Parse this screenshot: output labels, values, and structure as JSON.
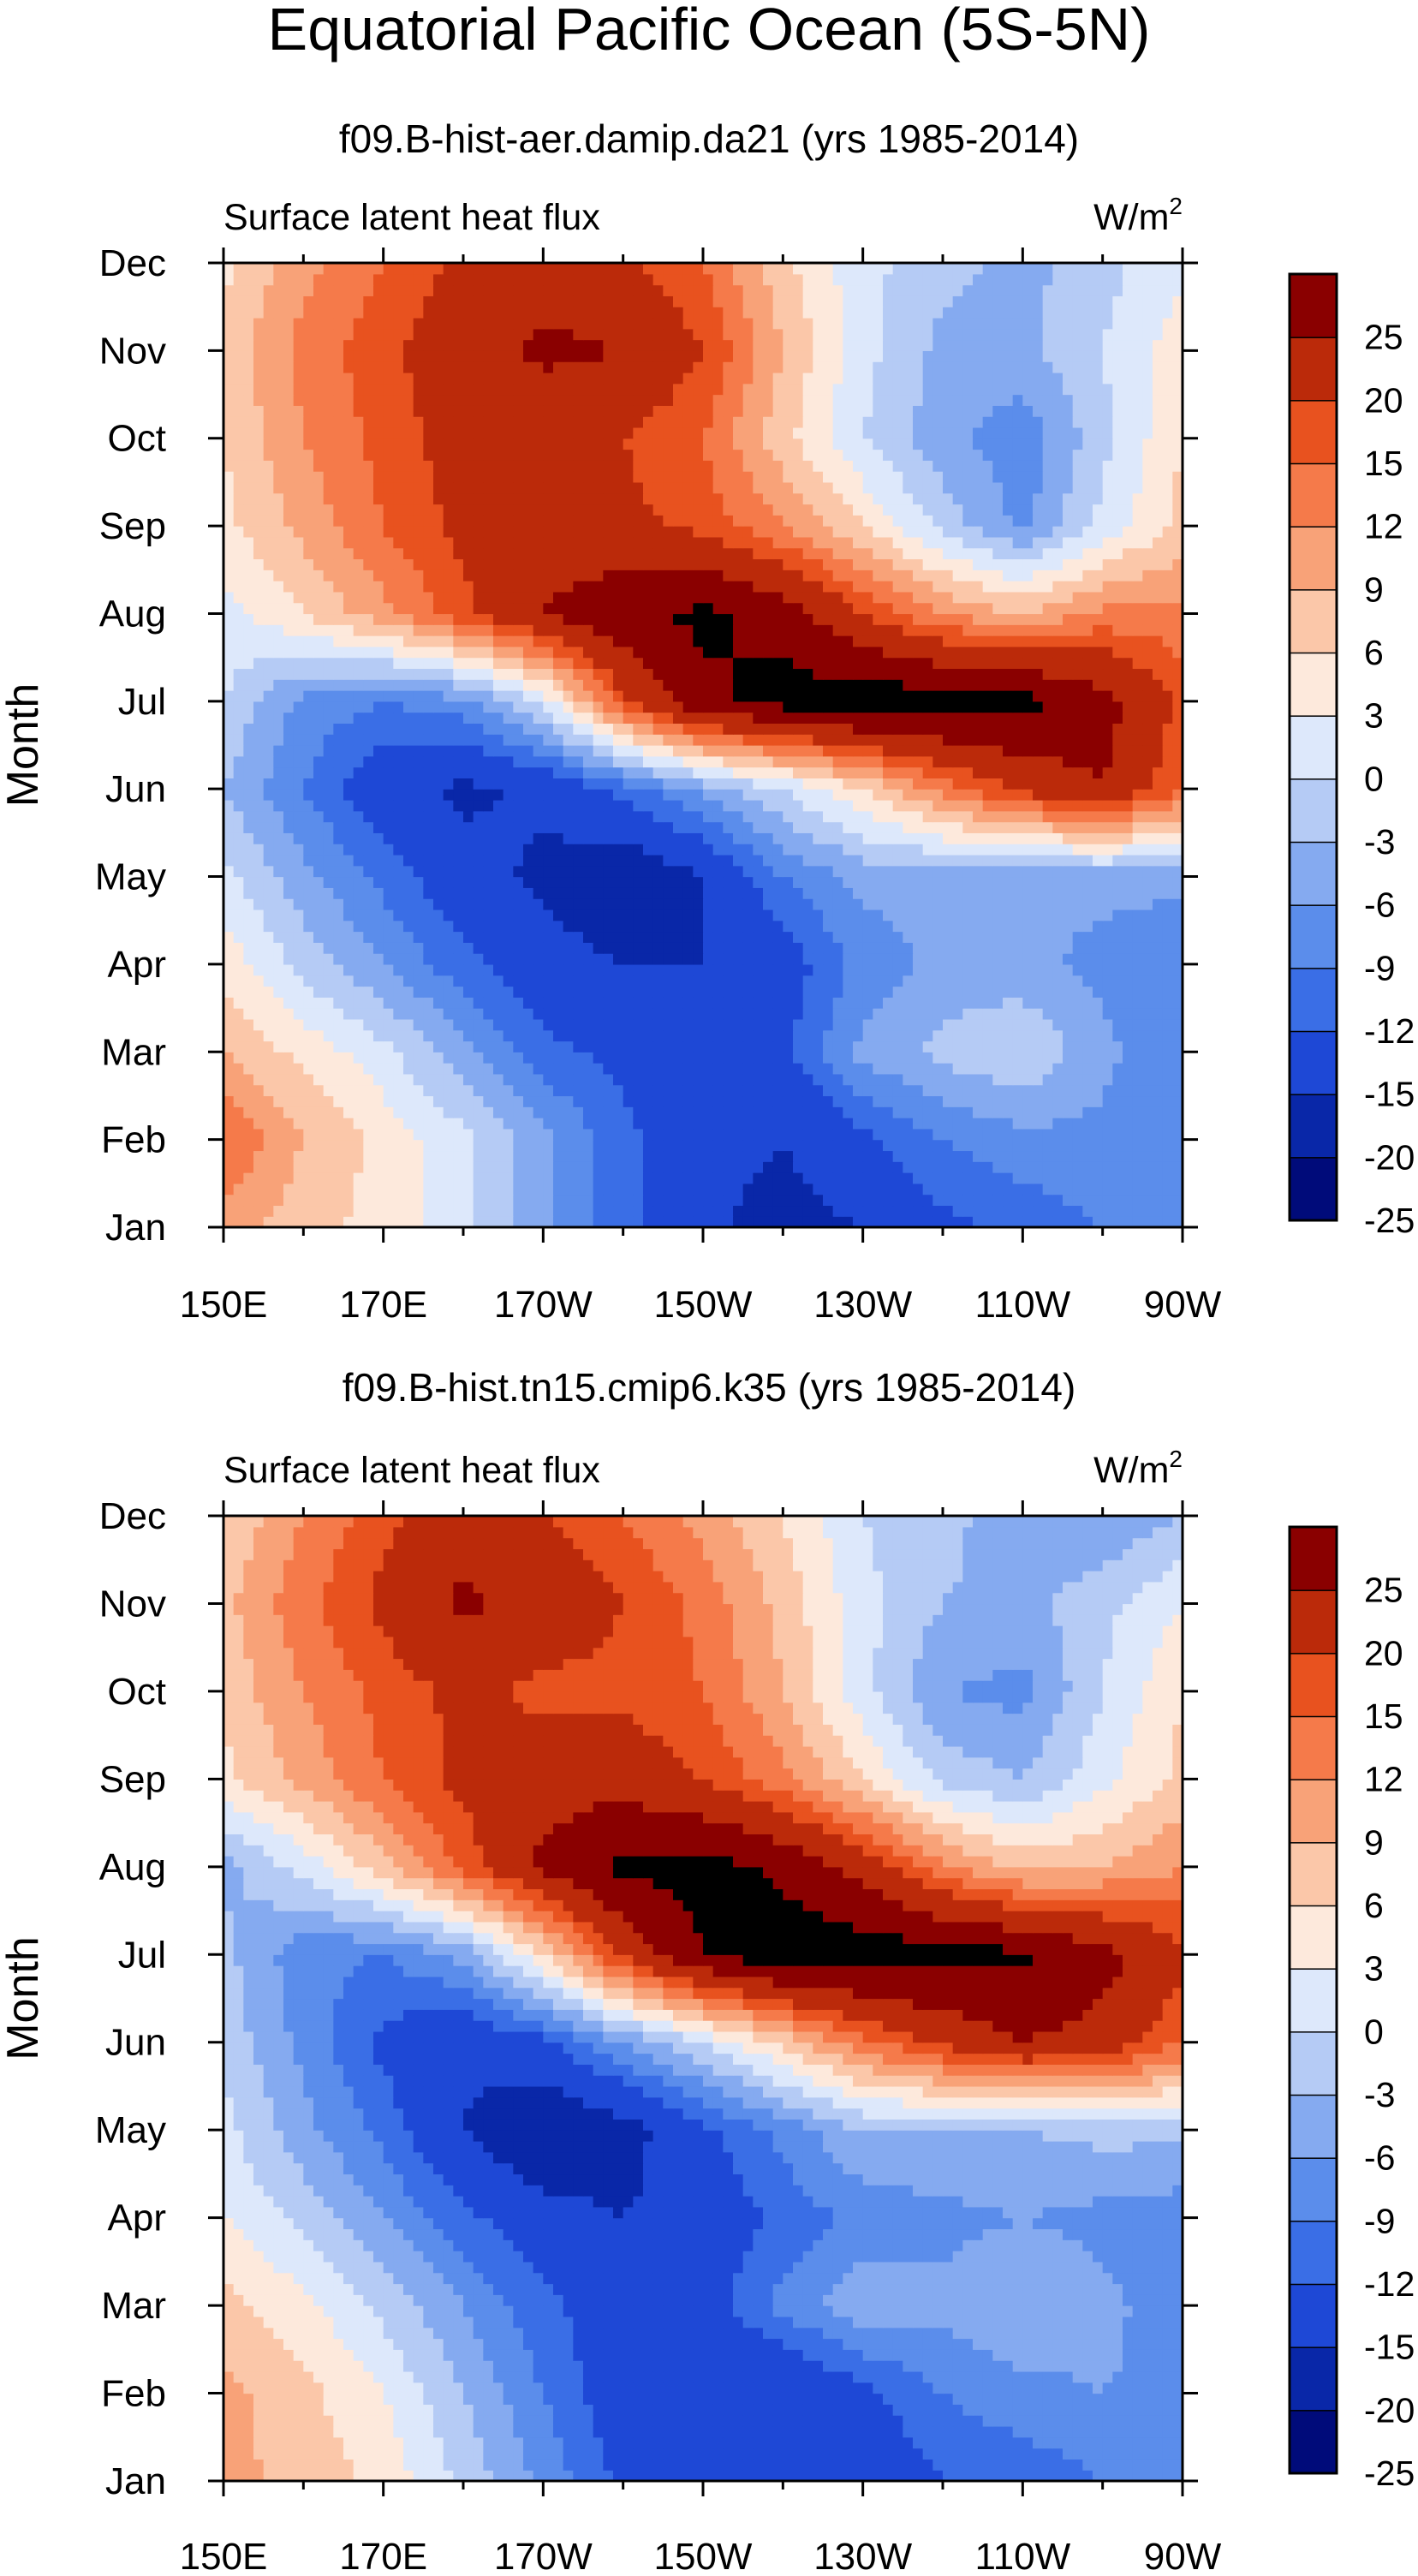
{
  "title": "Equatorial Pacific Ocean (5S-5N)",
  "levels": [
    -25,
    -20,
    -15,
    -12,
    -9,
    -6,
    -3,
    0,
    3,
    6,
    9,
    12,
    15,
    20,
    25
  ],
  "colorbar_labels": [
    "25",
    "20",
    "15",
    "12",
    "9",
    "6",
    "3",
    "0",
    "-3",
    "-6",
    "-9",
    "-12",
    "-15",
    "-20",
    "-25"
  ],
  "colors": [
    "#000b7a",
    "#0927a8",
    "#1e48d6",
    "#3a6ee6",
    "#5b8deb",
    "#85aaf0",
    "#b5cbf5",
    "#dde8fb",
    "#fde9dc",
    "#fbc7a9",
    "#f8a278",
    "#f57a4a",
    "#e8521f",
    "#bb2a0a",
    "#8a0000"
  ],
  "chart_data": [
    {
      "type": "heatmap",
      "title": "f09.B-hist-aer.damip.da21 (yrs 1985-2014)",
      "left_label": "Surface latent heat flux",
      "units": "W/m",
      "units_sup": "2",
      "ylabel": "Month",
      "x_tick_labels": [
        "150E",
        "170E",
        "170W",
        "150W",
        "130W",
        "110W",
        "90W"
      ],
      "y_tick_labels": [
        "Jan",
        "Feb",
        "Mar",
        "Apr",
        "May",
        "Jun",
        "Jul",
        "Aug",
        "Sep",
        "Oct",
        "Nov",
        "Dec"
      ],
      "longitude_deg_east": [
        150,
        160,
        170,
        180,
        190,
        200,
        210,
        220,
        230,
        240,
        250,
        260,
        270
      ],
      "values": [
        [
          8,
          4,
          2,
          -2,
          -8,
          -14,
          -19,
          -22,
          -20,
          -16,
          -14,
          -12,
          -12
        ],
        [
          12,
          6,
          2,
          -2,
          -8,
          -14,
          -18,
          -20,
          -16,
          -12,
          -10,
          -10,
          -12
        ],
        [
          6,
          2,
          -2,
          -8,
          -14,
          -16,
          -18,
          -16,
          -8,
          -5,
          -3,
          -8,
          -12
        ],
        [
          2,
          -4,
          -9,
          -14,
          -18,
          -20,
          -20,
          -17,
          -11,
          -8,
          -8,
          -10,
          -12
        ],
        [
          -2,
          -8,
          -13,
          -18,
          -21,
          -24,
          -20,
          -12,
          -8,
          -8,
          -9,
          -8,
          -8
        ],
        [
          -6,
          -12,
          -18,
          -21,
          -19,
          -14,
          -8,
          -3,
          3,
          10,
          16,
          20,
          12
        ],
        [
          -3,
          -10,
          -12,
          -10,
          -2,
          14,
          24,
          27,
          28,
          28,
          27,
          22,
          14
        ],
        [
          -1,
          3,
          8,
          14,
          20,
          24,
          26,
          23,
          15,
          9,
          6,
          10,
          10
        ],
        [
          2,
          7,
          12,
          16,
          17,
          16,
          14,
          9,
          3,
          -4,
          -10,
          -2,
          4
        ],
        [
          3,
          9,
          13,
          17,
          16,
          15,
          12,
          4,
          -3,
          -8,
          -11,
          -4,
          3
        ],
        [
          4,
          10,
          14,
          18,
          21,
          20,
          15,
          6,
          -2,
          -7,
          -7,
          -3,
          2
        ],
        [
          2,
          8,
          12,
          16,
          18,
          16,
          12,
          4,
          -2,
          -5,
          -7,
          -4,
          -1
        ]
      ]
    },
    {
      "type": "heatmap",
      "title": "f09.B-hist.tn15.cmip6.k35 (yrs 1985-2014)",
      "left_label": "Surface latent heat flux",
      "units": "W/m",
      "units_sup": "2",
      "ylabel": "Month",
      "x_tick_labels": [
        "150E",
        "170E",
        "170W",
        "150W",
        "130W",
        "110W",
        "90W"
      ],
      "y_tick_labels": [
        "Jan",
        "Feb",
        "Mar",
        "Apr",
        "May",
        "Jun",
        "Jul",
        "Aug",
        "Sep",
        "Oct",
        "Nov",
        "Dec"
      ],
      "longitude_deg_east": [
        150,
        160,
        170,
        180,
        190,
        200,
        210,
        220,
        230,
        240,
        250,
        260,
        270
      ],
      "values": [
        [
          7,
          5,
          2,
          -4,
          -10,
          -16,
          -19,
          -20,
          -18,
          -15,
          -14,
          -12,
          -12
        ],
        [
          7,
          4,
          0,
          -6,
          -12,
          -18,
          -20,
          -20,
          -16,
          -12,
          -10,
          -9,
          -10
        ],
        [
          4,
          1,
          -4,
          -9,
          -14,
          -18,
          -17,
          -11,
          -7,
          -8,
          -6,
          -8,
          -11
        ],
        [
          0,
          -4,
          -9,
          -14,
          -18,
          -20,
          -18,
          -14,
          -11,
          -10,
          -9,
          -10,
          -11
        ],
        [
          -2,
          -8,
          -13,
          -20,
          -25,
          -22,
          -16,
          -11,
          -6,
          -6,
          -6,
          -5,
          -5
        ],
        [
          -4,
          -10,
          -16,
          -19,
          -16,
          -9,
          -3,
          4,
          11,
          16,
          20,
          18,
          12
        ],
        [
          -5,
          -11,
          -12,
          -8,
          3,
          16,
          25,
          28,
          28,
          27,
          26,
          22,
          16
        ],
        [
          -7,
          -2,
          5,
          13,
          21,
          26,
          27,
          24,
          18,
          10,
          5,
          6,
          9
        ],
        [
          2,
          7,
          12,
          16,
          18,
          18,
          15,
          10,
          3,
          -4,
          -6,
          -1,
          4
        ],
        [
          4,
          9,
          13,
          16,
          14,
          14,
          12,
          6,
          -2,
          -9,
          -10,
          -3,
          3
        ],
        [
          5,
          11,
          16,
          21,
          18,
          15,
          11,
          5,
          -2,
          -6,
          -7,
          -4,
          0
        ],
        [
          3,
          9,
          14,
          18,
          15,
          12,
          8,
          3,
          -3,
          -5,
          -8,
          -9,
          -6
        ]
      ]
    }
  ]
}
